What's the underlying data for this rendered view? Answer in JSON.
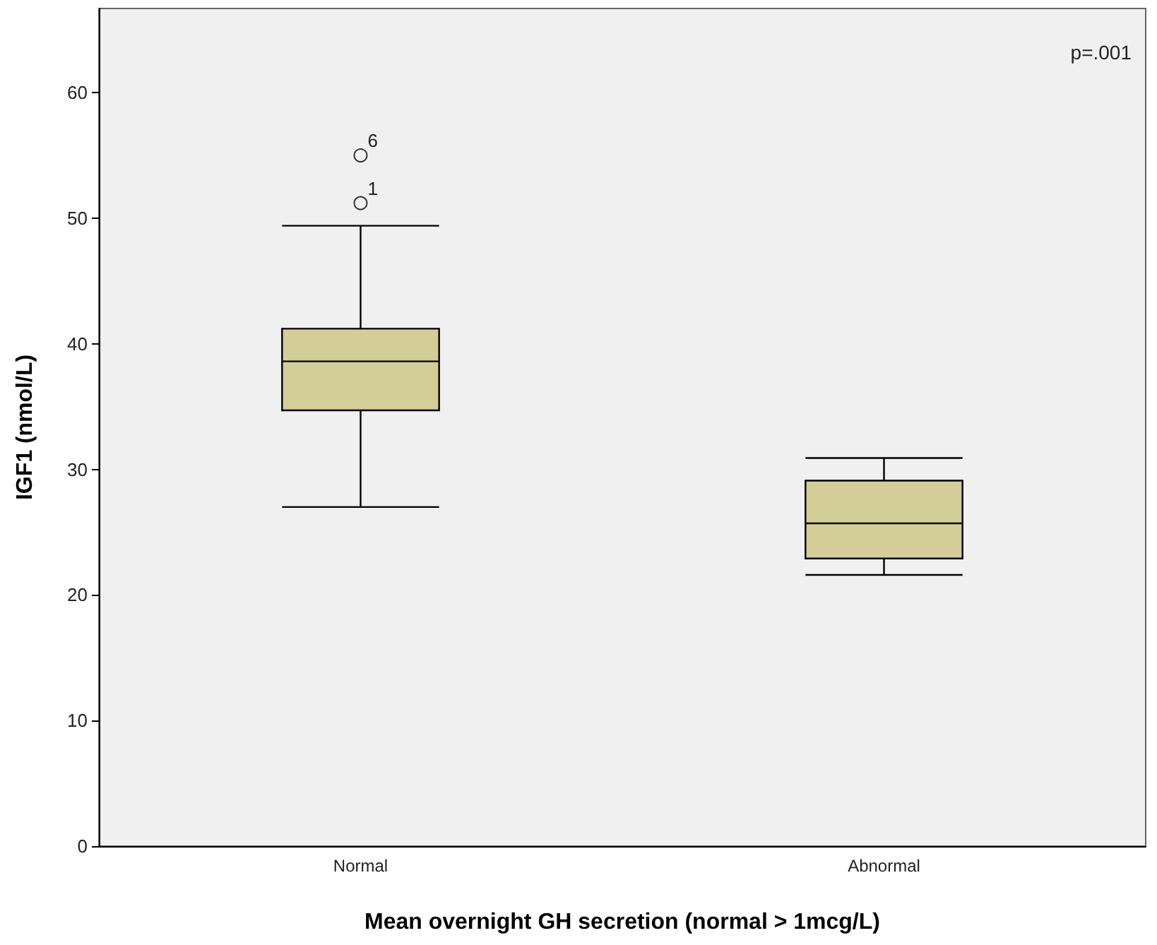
{
  "chart_data": {
    "type": "box",
    "xlabel": "Mean overnight GH secretion (normal > 1mcg/L)",
    "ylabel": "IGF1 (nmol/L)",
    "categories": [
      "Normal",
      "Abnormal"
    ],
    "boxes": [
      {
        "low": 27.0,
        "q1": 34.7,
        "median": 38.6,
        "q3": 41.2,
        "high": 49.4,
        "outliers": [
          55.0,
          51.2
        ]
      },
      {
        "low": 21.6,
        "q1": 22.9,
        "median": 25.7,
        "q3": 29.1,
        "high": 30.9
      }
    ],
    "color": "#d3cd98",
    "ylim": [
      0,
      66.7
    ],
    "yticks": [
      0,
      10,
      20,
      30,
      40,
      50,
      60
    ],
    "grid": false,
    "annotations": [
      "p=.001",
      "6",
      "1"
    ]
  }
}
